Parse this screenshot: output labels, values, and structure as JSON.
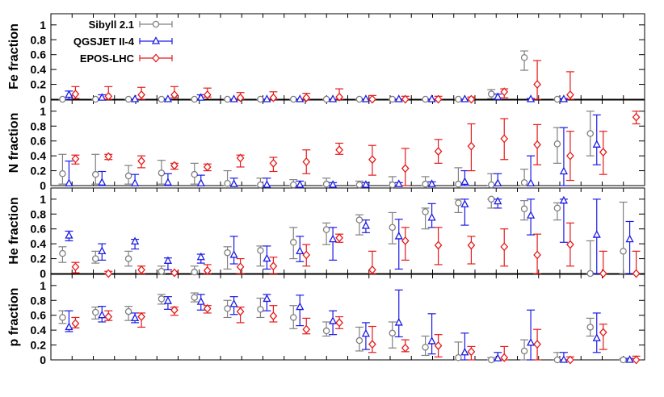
{
  "chart_data": {
    "type": "scatter",
    "ylim": [
      0,
      1.15
    ],
    "yticks": [
      "0",
      "0.2",
      "0.4",
      "0.6",
      "0.8",
      "1"
    ],
    "bins": 28,
    "grid": false,
    "legend_position": "top-left",
    "series": [
      {
        "key": "sibyll",
        "name": "Sibyll 2.1",
        "color": "#808080",
        "marker": "circle"
      },
      {
        "key": "qgsjet",
        "name": "QGSJET II-4",
        "color": "#1a1ae6",
        "marker": "triangle"
      },
      {
        "key": "epos",
        "name": "EPOS-LHC",
        "color": "#e61a1a",
        "marker": "diamond"
      }
    ],
    "panels": [
      {
        "ylabel": "Fe fraction",
        "values": {
          "sibyll": [
            [
              0,
              0,
              0
            ],
            [
              0,
              0,
              0
            ],
            [
              0,
              0,
              0
            ],
            [
              0,
              0,
              0
            ],
            [
              0,
              0,
              0
            ],
            [
              0,
              0,
              0
            ],
            [
              0,
              0,
              0
            ],
            [
              0,
              0,
              0
            ],
            [
              0,
              0,
              0
            ],
            [
              0,
              0,
              0
            ],
            [
              0,
              0,
              0
            ],
            [
              0,
              0,
              0
            ],
            [
              0,
              0,
              0
            ],
            [
              0.07,
              0.01,
              0.13
            ],
            [
              0.56,
              0.39,
              0.65
            ],
            [
              0,
              0,
              0
            ]
          ],
          "qgsjet": [
            [
              0.06,
              0,
              0.11
            ],
            [
              0.02,
              0,
              0.06
            ],
            [
              0,
              0,
              0
            ],
            [
              0,
              0,
              0
            ],
            [
              0.02,
              0,
              0.06
            ],
            [
              0,
              0,
              0
            ],
            [
              0,
              0,
              0
            ],
            [
              0,
              0,
              0
            ],
            [
              0,
              0,
              0
            ],
            [
              0,
              0,
              0
            ],
            [
              0,
              0,
              0
            ],
            [
              0,
              0,
              0
            ],
            [
              0,
              0,
              0
            ],
            [
              0.03,
              0,
              0.07
            ],
            [
              0,
              0,
              0.01
            ],
            [
              0,
              0,
              0.01
            ]
          ],
          "epos": [
            [
              0.07,
              0.01,
              0.17
            ],
            [
              0.04,
              0,
              0.17
            ],
            [
              0.06,
              0,
              0.16
            ],
            [
              0.06,
              0.02,
              0.17
            ],
            [
              0.06,
              0.03,
              0.15
            ],
            [
              0.02,
              0,
              0.09
            ],
            [
              0.02,
              0,
              0.1
            ],
            [
              0.02,
              0,
              0.08
            ],
            [
              0.03,
              0,
              0.14
            ],
            [
              0,
              0,
              0.05
            ],
            [
              0,
              0,
              0.04
            ],
            [
              0,
              0,
              0.04
            ],
            [
              0,
              0,
              0.03
            ],
            [
              0.1,
              0.02,
              0.14
            ],
            [
              0.2,
              0,
              0.52
            ],
            [
              0.06,
              0,
              0.37
            ]
          ]
        }
      },
      {
        "ylabel": "N fraction",
        "values": {
          "sibyll": [
            [
              0.16,
              0.02,
              0.42
            ],
            [
              0.15,
              0.02,
              0.42
            ],
            [
              0.13,
              0.02,
              0.27
            ],
            [
              0.17,
              0.02,
              0.34
            ],
            [
              0.15,
              0.02,
              0.3
            ],
            [
              0.03,
              0,
              0.2
            ],
            [
              0.01,
              0,
              0.1
            ],
            [
              0.01,
              0,
              0.08
            ],
            [
              0.02,
              0,
              0.1
            ],
            [
              0.01,
              0,
              0.06
            ],
            [
              0.01,
              0,
              0.12
            ],
            [
              0.02,
              0,
              0.12
            ],
            [
              0.02,
              0,
              0.24
            ],
            [
              0.01,
              0,
              0.16
            ],
            [
              0.04,
              0,
              0.22
            ],
            [
              0.56,
              0.3,
              0.78
            ],
            [
              0.7,
              0.4,
              1
            ]
          ],
          "qgsjet": [
            [
              0.03,
              0,
              0.33
            ],
            [
              0.04,
              0,
              0.19
            ],
            [
              0.03,
              0,
              0.15
            ],
            [
              0.04,
              0,
              0.16
            ],
            [
              0.03,
              0,
              0.14
            ],
            [
              0.02,
              0,
              0.1
            ],
            [
              0.01,
              0,
              0.1
            ],
            [
              0.01,
              0,
              0.06
            ],
            [
              0.01,
              0,
              0.04
            ],
            [
              0.01,
              0,
              0.04
            ],
            [
              0.02,
              0,
              0.04
            ],
            [
              0.02,
              0,
              0.05
            ],
            [
              0.05,
              0,
              0.2
            ],
            [
              0.03,
              0,
              0.16
            ],
            [
              0.03,
              0,
              0.4
            ],
            [
              0.19,
              0,
              0.78
            ],
            [
              0.55,
              0.28,
              0.95
            ]
          ],
          "epos": [
            [
              0.36,
              0.29,
              0.41
            ],
            [
              0.39,
              0.35,
              0.42
            ],
            [
              0.33,
              0.24,
              0.4
            ],
            [
              0.27,
              0.22,
              0.3
            ],
            [
              0.25,
              0.2,
              0.29
            ],
            [
              0.37,
              0.25,
              0.41
            ],
            [
              0.3,
              0.19,
              0.38
            ],
            [
              0.32,
              0.16,
              0.48
            ],
            [
              0.48,
              0.42,
              0.57
            ],
            [
              0.35,
              0.14,
              0.54
            ],
            [
              0.23,
              0,
              0.5
            ],
            [
              0.46,
              0.3,
              0.62
            ],
            [
              0.53,
              0.2,
              0.83
            ],
            [
              0.63,
              0.35,
              0.9
            ],
            [
              0.55,
              0.28,
              0.82
            ],
            [
              0.4,
              0.07,
              0.73
            ],
            [
              0.45,
              0.15,
              0.73
            ],
            [
              0.92,
              0.83,
              1
            ]
          ]
        }
      },
      {
        "ylabel": "He fraction",
        "values": {
          "sibyll": [
            [
              0.27,
              0.15,
              0.36
            ],
            [
              0.2,
              0.14,
              0.3
            ],
            [
              0.2,
              0.1,
              0.3
            ],
            [
              0.03,
              0,
              0.1
            ],
            [
              0.02,
              0,
              0.1
            ],
            [
              0.28,
              0.06,
              0.36
            ],
            [
              0.31,
              0.1,
              0.37
            ],
            [
              0.42,
              0.2,
              0.62
            ],
            [
              0.59,
              0.39,
              0.68
            ],
            [
              0.72,
              0.52,
              0.79
            ],
            [
              0.62,
              0.4,
              0.82
            ],
            [
              0.83,
              0.6,
              0.88
            ],
            [
              0.95,
              0.82,
              1
            ],
            [
              1,
              0.88,
              1
            ],
            [
              0.87,
              0.72,
              0.98
            ],
            [
              0.88,
              0.72,
              0.95
            ],
            [
              0,
              0,
              0.44
            ],
            [
              0.3,
              0,
              0.96
            ]
          ],
          "qgsjet": [
            [
              0.51,
              0.44,
              0.57
            ],
            [
              0.3,
              0.18,
              0.4
            ],
            [
              0.43,
              0.33,
              0.46
            ],
            [
              0.17,
              0.05,
              0.21
            ],
            [
              0.22,
              0.14,
              0.26
            ],
            [
              0.25,
              0.13,
              0.5
            ],
            [
              0.2,
              0.06,
              0.37
            ],
            [
              0.3,
              0.16,
              0.5
            ],
            [
              0.46,
              0.18,
              0.62
            ],
            [
              0.64,
              0.55,
              0.72
            ],
            [
              0.5,
              0.06,
              0.73
            ],
            [
              0.75,
              0.62,
              0.94
            ],
            [
              0.93,
              0.65,
              1
            ],
            [
              0.97,
              0.88,
              1
            ],
            [
              0.78,
              0.52,
              1
            ],
            [
              0.98,
              0.42,
              1
            ],
            [
              0.52,
              0,
              1
            ],
            [
              0.46,
              0,
              0.7
            ]
          ],
          "epos": [
            [
              0.09,
              0.01,
              0.15
            ],
            [
              0,
              0,
              0.03
            ],
            [
              0.05,
              0,
              0.1
            ],
            [
              0.01,
              0,
              0.03
            ],
            [
              0.04,
              0,
              0.12
            ],
            [
              0.09,
              0,
              0.2
            ],
            [
              0.1,
              0,
              0.22
            ],
            [
              0.25,
              0.1,
              0.39
            ],
            [
              0.48,
              0.42,
              0.53
            ],
            [
              0.05,
              0,
              0.3
            ],
            [
              0.44,
              0.18,
              0.62
            ],
            [
              0.38,
              0.12,
              0.62
            ],
            [
              0.38,
              0.13,
              0.5
            ],
            [
              0.36,
              0.1,
              0.6
            ],
            [
              0.25,
              0,
              0.53
            ],
            [
              0.39,
              0.1,
              0.68
            ],
            [
              0,
              0,
              0.3
            ],
            [
              0,
              0,
              0.3
            ]
          ]
        }
      },
      {
        "ylabel": "p fraction",
        "values": {
          "sibyll": [
            [
              0.57,
              0.49,
              0.66
            ],
            [
              0.64,
              0.55,
              0.71
            ],
            [
              0.65,
              0.53,
              0.72
            ],
            [
              0.82,
              0.75,
              0.88
            ],
            [
              0.84,
              0.78,
              0.9
            ],
            [
              0.69,
              0.57,
              0.8
            ],
            [
              0.68,
              0.57,
              0.83
            ],
            [
              0.57,
              0.42,
              0.73
            ],
            [
              0.39,
              0.32,
              0.51
            ],
            [
              0.26,
              0.12,
              0.44
            ],
            [
              0.36,
              0.16,
              0.51
            ],
            [
              0.17,
              0.06,
              0.32
            ],
            [
              0.03,
              0,
              0.24
            ],
            [
              0,
              0,
              0.03
            ],
            [
              0.12,
              0,
              0.27
            ],
            [
              0,
              0,
              0.1
            ],
            [
              0.44,
              0.32,
              0.56
            ],
            [
              0,
              0,
              0.02
            ]
          ],
          "qgsjet": [
            [
              0.44,
              0.38,
              0.66
            ],
            [
              0.6,
              0.51,
              0.72
            ],
            [
              0.56,
              0.5,
              0.63
            ],
            [
              0.79,
              0.68,
              0.85
            ],
            [
              0.78,
              0.67,
              0.88
            ],
            [
              0.75,
              0.61,
              0.85
            ],
            [
              0.82,
              0.66,
              0.88
            ],
            [
              0.71,
              0.46,
              0.87
            ],
            [
              0.52,
              0.34,
              0.66
            ],
            [
              0.35,
              0.14,
              0.5
            ],
            [
              0.5,
              0.31,
              0.94
            ],
            [
              0.25,
              0.08,
              0.62
            ],
            [
              0.1,
              0,
              0.36
            ],
            [
              0.02,
              0,
              0.1
            ],
            [
              0.23,
              0,
              0.67
            ],
            [
              0,
              0,
              0.1
            ],
            [
              0.29,
              0.1,
              0.63
            ],
            [
              0,
              0,
              0.02
            ]
          ],
          "epos": [
            [
              0.49,
              0.43,
              0.57
            ],
            [
              0.58,
              0.53,
              0.66
            ],
            [
              0.58,
              0.44,
              0.63
            ],
            [
              0.67,
              0.6,
              0.71
            ],
            [
              0.69,
              0.63,
              0.73
            ],
            [
              0.65,
              0.5,
              0.71
            ],
            [
              0.59,
              0.51,
              0.73
            ],
            [
              0.41,
              0.35,
              0.56
            ],
            [
              0.5,
              0.42,
              0.58
            ],
            [
              0.21,
              0.1,
              0.45
            ],
            [
              0.16,
              0.11,
              0.27
            ],
            [
              0.19,
              0.04,
              0.34
            ],
            [
              0.11,
              0,
              0.18
            ],
            [
              0.03,
              0,
              0.18
            ],
            [
              0.21,
              0,
              0.41
            ],
            [
              0,
              0,
              0.04
            ],
            [
              0.37,
              0.14,
              0.48
            ],
            [
              0,
              0,
              0.05
            ]
          ]
        }
      }
    ]
  }
}
